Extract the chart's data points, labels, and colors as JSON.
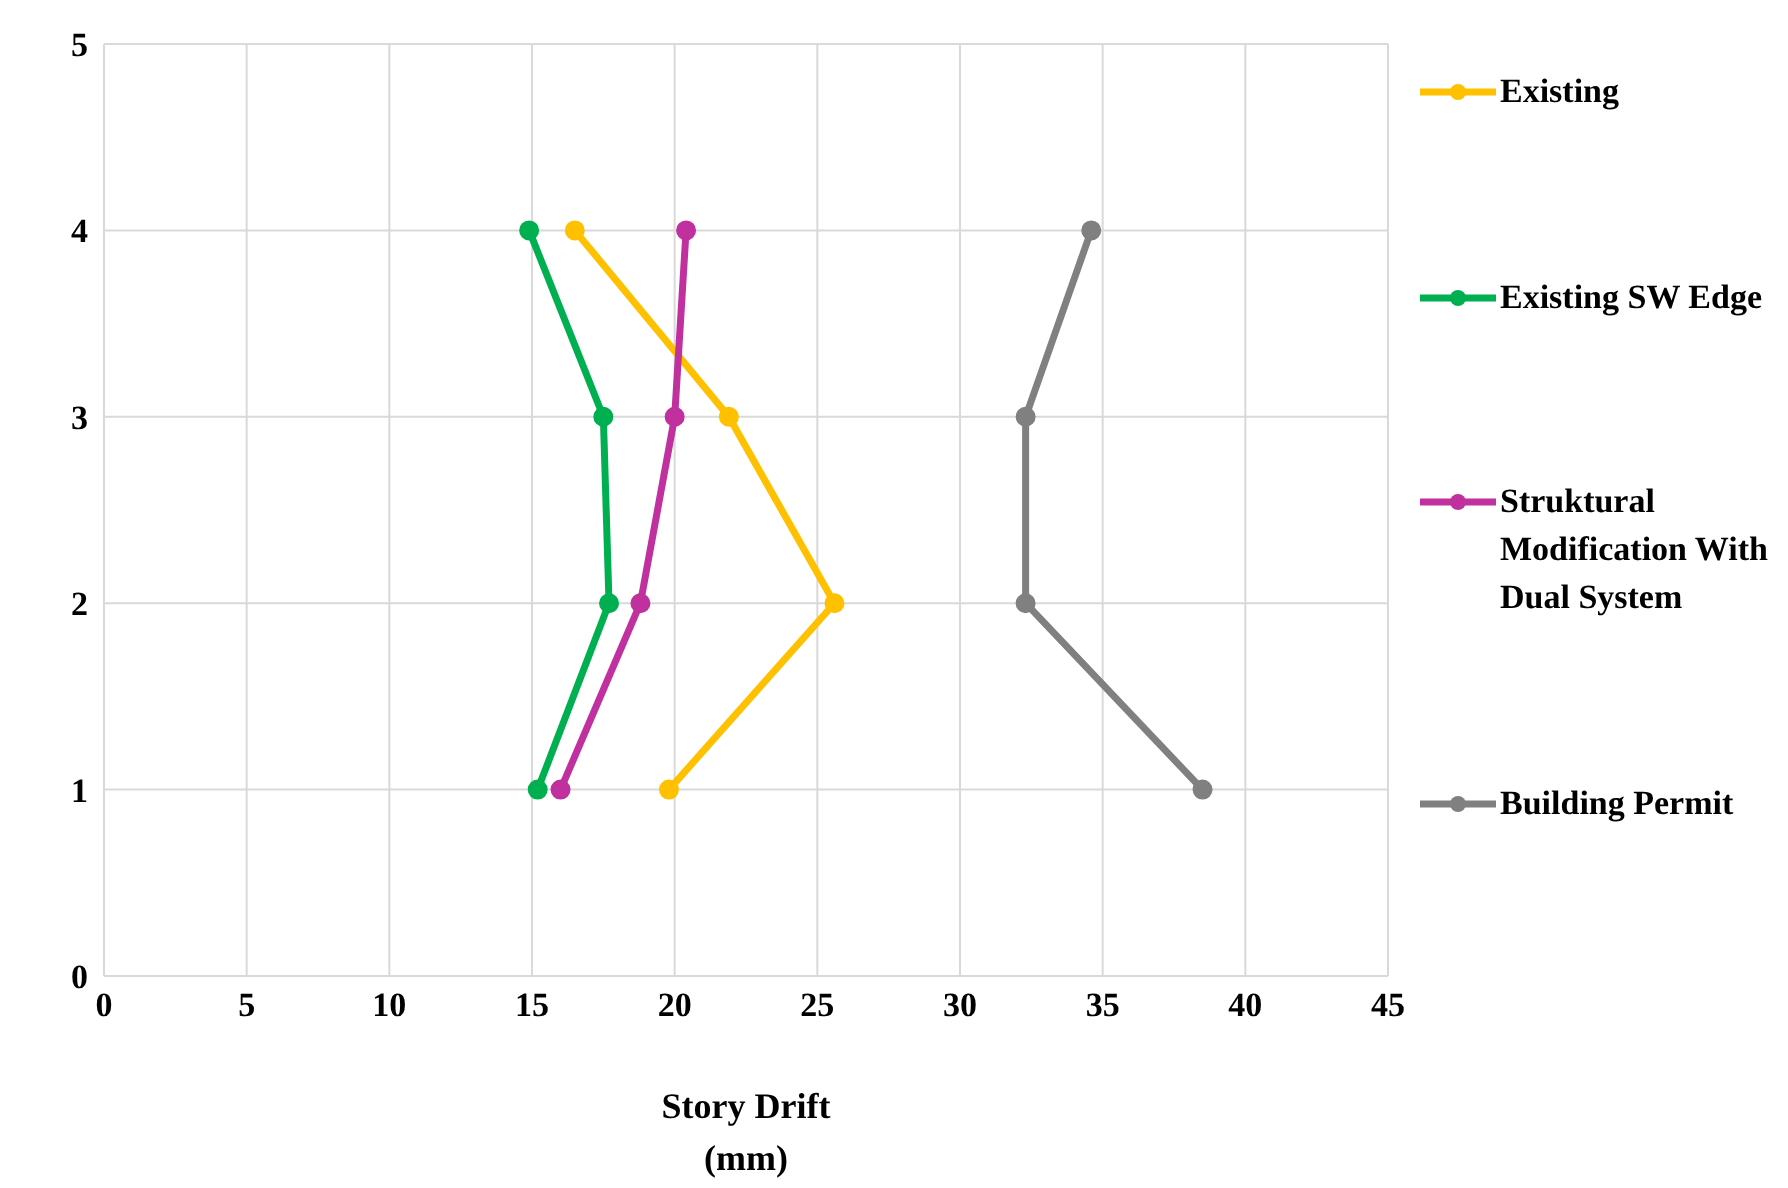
{
  "chart_data": {
    "type": "line",
    "xlabel": "Story Drift\n(mm)",
    "xlim": [
      0,
      45
    ],
    "xticks": [
      0,
      5,
      10,
      15,
      20,
      25,
      30,
      35,
      40,
      45
    ],
    "ylim": [
      0,
      5
    ],
    "yticks": [
      0,
      1,
      2,
      3,
      4,
      5
    ],
    "grid": true,
    "legend": "right",
    "marker": "circle",
    "line_style": "solid",
    "series": [
      {
        "name": "Existing",
        "color": "#ffc000",
        "x": [
          16.5,
          21.9,
          25.6,
          19.8
        ],
        "values": [
          4,
          3,
          2,
          1
        ]
      },
      {
        "name": "Existing SW Edge",
        "color": "#00b050",
        "x": [
          14.9,
          17.5,
          17.7,
          15.2
        ],
        "values": [
          4,
          3,
          2,
          1
        ]
      },
      {
        "name": "Struktural Modification With Dual System",
        "color": "#c0309e",
        "x": [
          20.4,
          20.0,
          18.8,
          16.0
        ],
        "values": [
          4,
          3,
          2,
          1
        ]
      },
      {
        "name": "Building Permit",
        "color": "#808080",
        "x": [
          34.6,
          32.3,
          32.3,
          38.5
        ],
        "values": [
          4,
          3,
          2,
          1
        ]
      }
    ]
  }
}
